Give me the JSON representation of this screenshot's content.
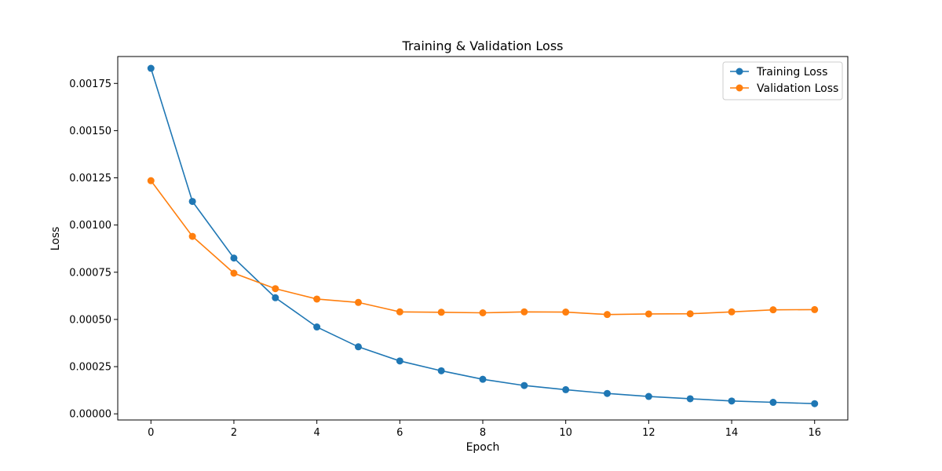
{
  "chart_data": {
    "type": "line",
    "title": "Training & Validation Loss",
    "xlabel": "Epoch",
    "ylabel": "Loss",
    "x": [
      0,
      1,
      2,
      3,
      4,
      5,
      6,
      7,
      8,
      9,
      10,
      11,
      12,
      13,
      14,
      15,
      16
    ],
    "xlim": [
      -0.8,
      16.8
    ],
    "ylim": [
      -3.25e-05,
      0.0018925
    ],
    "xticks": [
      0,
      2,
      4,
      6,
      8,
      10,
      12,
      14,
      16
    ],
    "xtick_labels": [
      "0",
      "2",
      "4",
      "6",
      "8",
      "10",
      "12",
      "14",
      "16"
    ],
    "yticks": [
      0,
      0.00025,
      0.0005,
      0.00075,
      0.001,
      0.00125,
      0.0015,
      0.00175
    ],
    "ytick_labels": [
      "0.00000",
      "0.00025",
      "0.00050",
      "0.00075",
      "0.00100",
      "0.00125",
      "0.00150",
      "0.00175"
    ],
    "grid": false,
    "legend_position": "top-right",
    "series": [
      {
        "name": "Training Loss",
        "color": "#1f77b4",
        "marker": "circle",
        "values": [
          0.00183,
          0.001125,
          0.000825,
          0.000615,
          0.00046,
          0.000355,
          0.00028,
          0.000228,
          0.000183,
          0.00015,
          0.000128,
          0.000108,
          9.2e-05,
          8e-05,
          6.8e-05,
          6.1e-05,
          5.4e-05
        ]
      },
      {
        "name": "Validation Loss",
        "color": "#ff7f0e",
        "marker": "circle",
        "values": [
          0.001235,
          0.00094,
          0.000745,
          0.000663,
          0.000608,
          0.00059,
          0.00054,
          0.000538,
          0.000535,
          0.00054,
          0.000539,
          0.000526,
          0.000529,
          0.00053,
          0.00054,
          0.000551,
          0.000552
        ]
      }
    ]
  }
}
